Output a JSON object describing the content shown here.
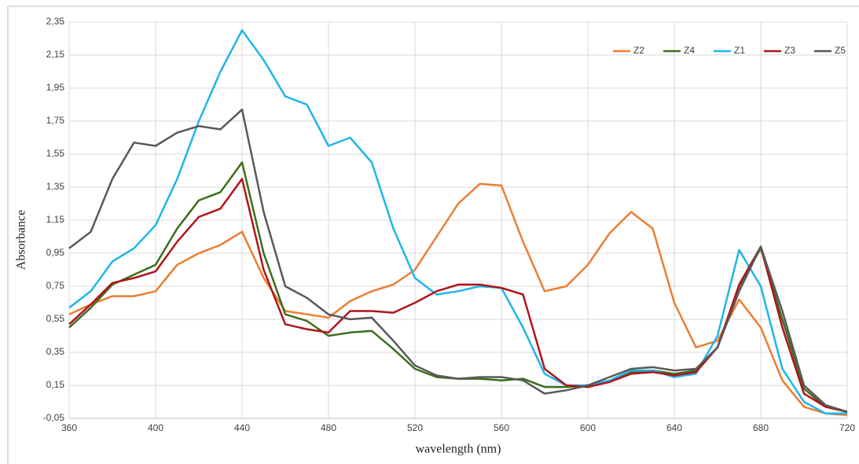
{
  "chart_data": {
    "type": "line",
    "x_label": "wavelength (nm)",
    "y_label": "Absorbance",
    "x": [
      360,
      370,
      380,
      390,
      400,
      410,
      420,
      430,
      440,
      450,
      460,
      470,
      480,
      490,
      500,
      510,
      520,
      530,
      540,
      550,
      560,
      570,
      580,
      590,
      600,
      610,
      620,
      630,
      640,
      650,
      660,
      670,
      680,
      690,
      700,
      710,
      720
    ],
    "series": [
      {
        "name": "Z2",
        "color": "#ed7d31",
        "values": [
          0.58,
          0.64,
          0.69,
          0.69,
          0.72,
          0.88,
          0.95,
          1.0,
          1.08,
          0.8,
          0.6,
          0.58,
          0.56,
          0.66,
          0.72,
          0.76,
          0.85,
          1.05,
          1.25,
          1.37,
          1.36,
          1.02,
          0.72,
          0.75,
          0.88,
          1.07,
          1.2,
          1.1,
          0.65,
          0.38,
          0.42,
          0.67,
          0.5,
          0.18,
          0.02,
          -0.02,
          -0.03
        ]
      },
      {
        "name": "Z4",
        "color": "#3b6e1c",
        "values": [
          0.5,
          0.62,
          0.76,
          0.82,
          0.88,
          1.1,
          1.27,
          1.32,
          1.5,
          0.95,
          0.58,
          0.54,
          0.45,
          0.47,
          0.48,
          0.37,
          0.25,
          0.2,
          0.19,
          0.19,
          0.18,
          0.19,
          0.14,
          0.14,
          0.15,
          0.17,
          0.23,
          0.24,
          0.22,
          0.24,
          0.38,
          0.75,
          0.98,
          0.55,
          0.13,
          0.02,
          -0.01
        ]
      },
      {
        "name": "Z1",
        "color": "#1fb5ea",
        "values": [
          0.62,
          0.72,
          0.9,
          0.98,
          1.12,
          1.4,
          1.75,
          2.05,
          2.3,
          2.12,
          1.9,
          1.85,
          1.6,
          1.65,
          1.5,
          1.1,
          0.8,
          0.7,
          0.72,
          0.75,
          0.74,
          0.5,
          0.22,
          0.15,
          0.15,
          0.18,
          0.24,
          0.24,
          0.2,
          0.22,
          0.45,
          0.97,
          0.75,
          0.25,
          0.05,
          -0.02,
          -0.02
        ]
      },
      {
        "name": "Z3",
        "color": "#b0141b",
        "values": [
          0.52,
          0.64,
          0.77,
          0.8,
          0.84,
          1.02,
          1.17,
          1.22,
          1.4,
          0.85,
          0.52,
          0.49,
          0.47,
          0.6,
          0.6,
          0.59,
          0.65,
          0.72,
          0.76,
          0.76,
          0.74,
          0.7,
          0.25,
          0.15,
          0.14,
          0.17,
          0.22,
          0.23,
          0.21,
          0.23,
          0.38,
          0.76,
          0.99,
          0.5,
          0.1,
          0.02,
          -0.01
        ]
      },
      {
        "name": "Z5",
        "color": "#595959",
        "values": [
          0.98,
          1.08,
          1.4,
          1.62,
          1.6,
          1.68,
          1.72,
          1.7,
          1.82,
          1.2,
          0.75,
          0.68,
          0.58,
          0.55,
          0.56,
          0.42,
          0.27,
          0.21,
          0.19,
          0.2,
          0.2,
          0.18,
          0.1,
          0.12,
          0.15,
          0.2,
          0.25,
          0.26,
          0.24,
          0.25,
          0.38,
          0.72,
          0.99,
          0.6,
          0.15,
          0.03,
          -0.01
        ]
      }
    ],
    "xlim": [
      360,
      720
    ],
    "xticks": [
      360,
      400,
      440,
      480,
      520,
      560,
      600,
      640,
      680,
      720
    ],
    "ylim": [
      -0.05,
      2.35
    ],
    "yticks": [
      {
        "value": -0.05,
        "label": "-0,05"
      },
      {
        "value": 0.15,
        "label": "0,15"
      },
      {
        "value": 0.35,
        "label": "0,35"
      },
      {
        "value": 0.55,
        "label": "0,55"
      },
      {
        "value": 0.75,
        "label": "0,75"
      },
      {
        "value": 0.95,
        "label": "0,95"
      },
      {
        "value": 1.15,
        "label": "1,15"
      },
      {
        "value": 1.35,
        "label": "1,35"
      },
      {
        "value": 1.55,
        "label": "1,55"
      },
      {
        "value": 1.75,
        "label": "1,75"
      },
      {
        "value": 1.95,
        "label": "1,95"
      },
      {
        "value": 2.15,
        "label": "2,15"
      },
      {
        "value": 2.35,
        "label": "2,35"
      }
    ],
    "grid": true,
    "legend": "top-right"
  }
}
